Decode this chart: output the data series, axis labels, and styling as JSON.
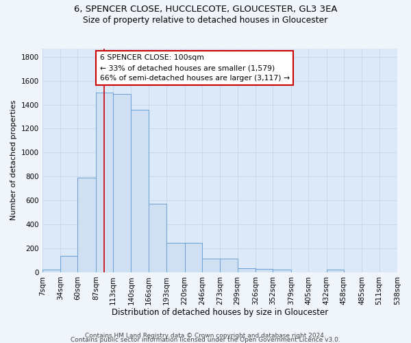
{
  "title1": "6, SPENCER CLOSE, HUCCLECOTE, GLOUCESTER, GL3 3EA",
  "title2": "Size of property relative to detached houses in Gloucester",
  "xlabel": "Distribution of detached houses by size in Gloucester",
  "ylabel": "Number of detached properties",
  "bin_edges": [
    7,
    34,
    60,
    87,
    113,
    140,
    166,
    193,
    220,
    246,
    273,
    299,
    326,
    352,
    379,
    405,
    432,
    458,
    485,
    511,
    538
  ],
  "bar_heights": [
    20,
    135,
    790,
    1500,
    1490,
    1360,
    570,
    245,
    245,
    115,
    115,
    35,
    30,
    20,
    0,
    0,
    20,
    0,
    0,
    0
  ],
  "bar_color": "#cfe0f3",
  "bar_edge_color": "#6a9fd8",
  "bar_linewidth": 0.7,
  "grid_color": "#e8eef7",
  "bg_color": "#dce9f8",
  "fig_bg_color": "#f0f5fc",
  "red_line_x": 100,
  "red_line_color": "#cc0000",
  "annotation_text": "6 SPENCER CLOSE: 100sqm\n← 33% of detached houses are smaller (1,579)\n66% of semi-detached houses are larger (3,117) →",
  "annotation_box_color": "#ffffff",
  "annotation_box_edge_color": "#cc0000",
  "ylim": [
    0,
    1870
  ],
  "yticks": [
    0,
    200,
    400,
    600,
    800,
    1000,
    1200,
    1400,
    1600,
    1800
  ],
  "footer_line1": "Contains HM Land Registry data © Crown copyright and database right 2024.",
  "footer_line2": "Contains public sector information licensed under the Open Government Licence v3.0.",
  "title1_fontsize": 9.5,
  "title2_fontsize": 8.8,
  "xlabel_fontsize": 8.5,
  "ylabel_fontsize": 8,
  "tick_fontsize": 7.5,
  "annotation_fontsize": 7.8,
  "footer_fontsize": 6.5
}
